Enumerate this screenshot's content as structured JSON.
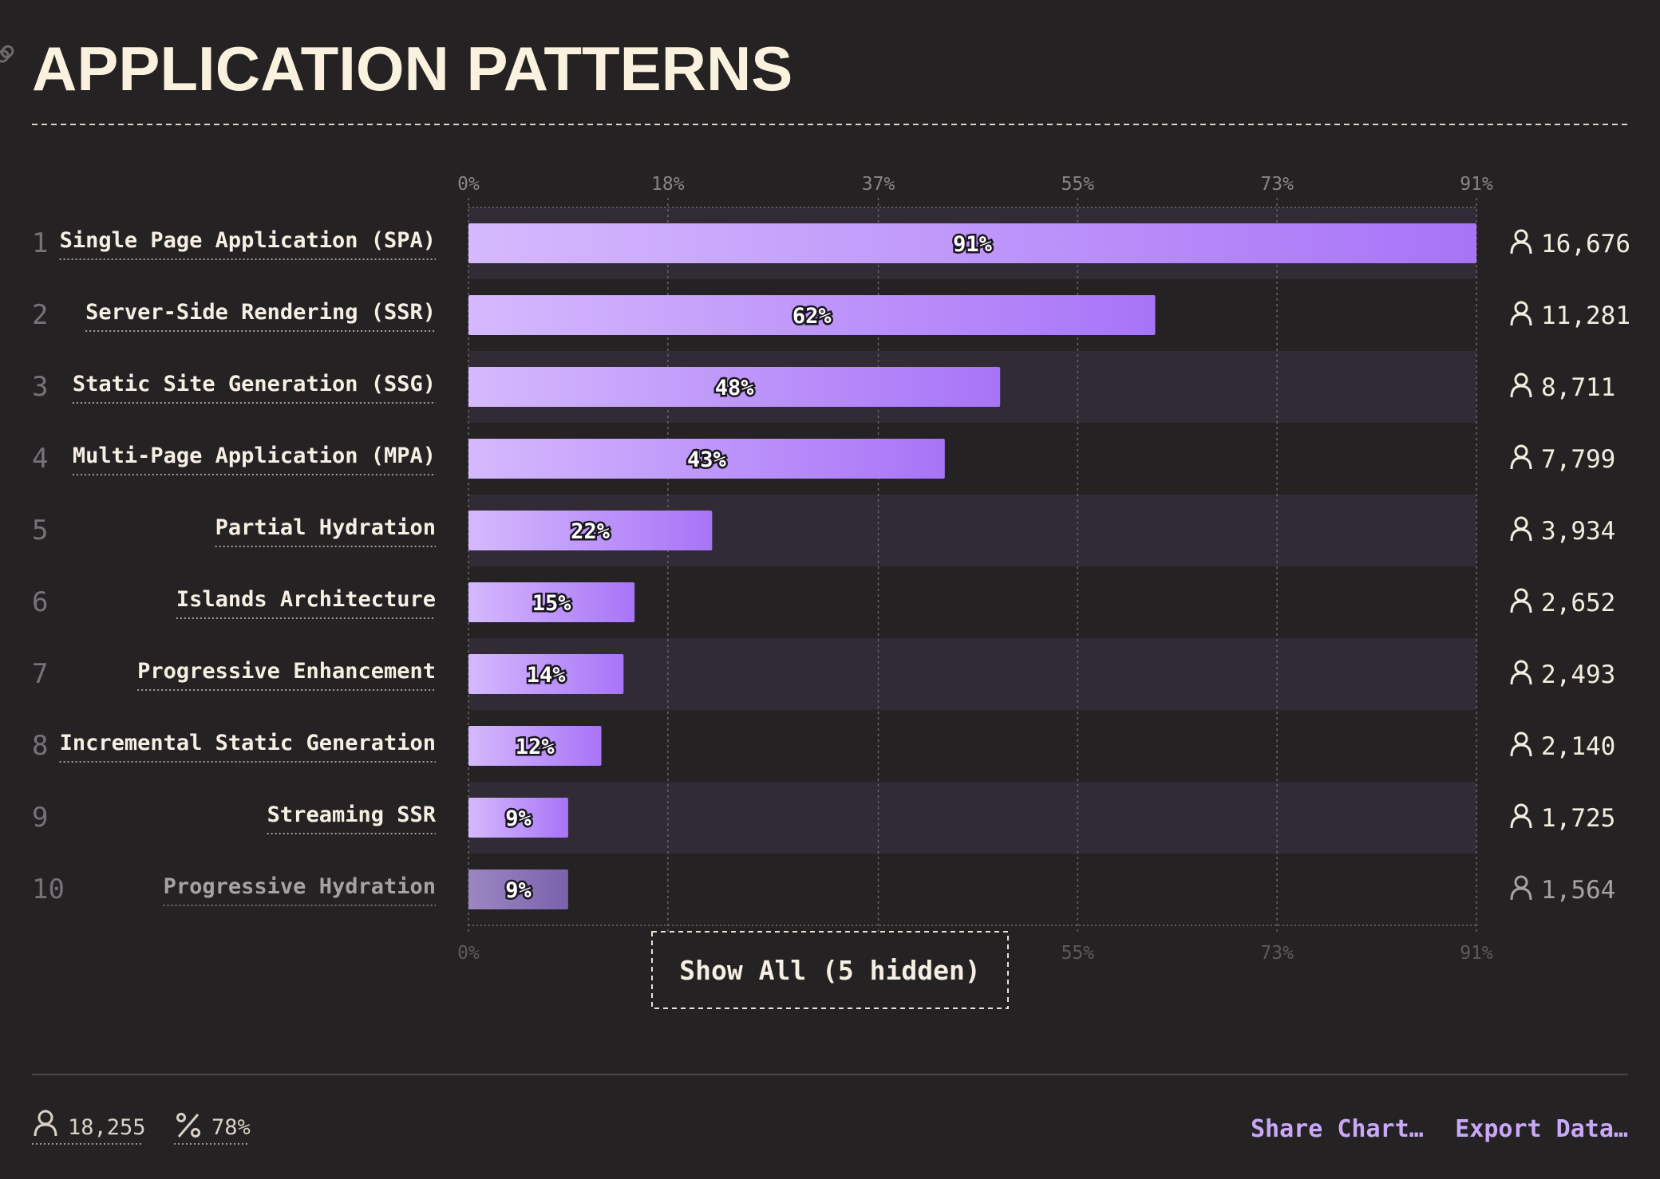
{
  "title": "APPLICATION PATTERNS",
  "chart_data": {
    "type": "bar",
    "orientation": "horizontal",
    "categories": [
      "Single Page Application (SPA)",
      "Server-Side Rendering (SSR)",
      "Static Site Generation (SSG)",
      "Multi-Page Application (MPA)",
      "Partial Hydration",
      "Islands Architecture",
      "Progressive Enhancement",
      "Incremental Static Generation",
      "Streaming SSR",
      "Progressive Hydration"
    ],
    "ranks": [
      "1",
      "2",
      "3",
      "4",
      "5",
      "6",
      "7",
      "8",
      "9",
      "10"
    ],
    "values": [
      91,
      62,
      48,
      43,
      22,
      15,
      14,
      12,
      9,
      9
    ],
    "value_labels": [
      "91%",
      "62%",
      "48%",
      "43%",
      "22%",
      "15%",
      "14%",
      "12%",
      "9%",
      "9%"
    ],
    "counts": [
      "16,676",
      "11,281",
      "8,711",
      "7,799",
      "3,934",
      "2,652",
      "2,493",
      "2,140",
      "1,725",
      "1,564"
    ],
    "x_ticks": [
      0,
      18,
      37,
      55,
      73,
      91
    ],
    "x_tick_labels": [
      "0%",
      "18%",
      "37%",
      "55%",
      "73%",
      "91%"
    ],
    "xlim": [
      0,
      91
    ],
    "grid": true,
    "bar_color_start": "#d5b9fd",
    "bar_color_end": "#a874f7",
    "faded_bar_color_start": "#9b87c2",
    "faded_bar_color_end": "#7b62ad"
  },
  "show_all_label": "Show All (5 hidden)",
  "footer": {
    "respondents": "18,255",
    "percent": "78%",
    "share_label": "Share Chart…",
    "export_label": "Export Data…"
  },
  "icons": {
    "title_link": "link-icon",
    "count": "user-icon",
    "respondents": "user-icon",
    "percent": "percent-icon"
  },
  "colors": {
    "background": "#252223",
    "accent": "#c9a8f7",
    "title": "#fbf1df"
  }
}
